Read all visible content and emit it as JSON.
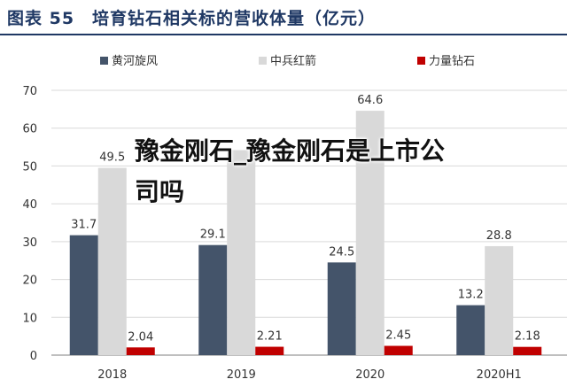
{
  "figure_title": "图表 55　培育钻石相关标的营收体量（亿元）",
  "overlay_text": "豫金刚石_豫金刚石是上市公司吗",
  "colors": {
    "title": "#1f3864",
    "series": [
      "#44546a",
      "#d9d9d9",
      "#c00000"
    ]
  },
  "chart_data": {
    "type": "bar",
    "categories": [
      "2018",
      "2019",
      "2020",
      "2020H1"
    ],
    "series": [
      {
        "name": "黄河旋风",
        "values": [
          31.7,
          29.1,
          24.5,
          13.2
        ],
        "labels": [
          "31.7",
          "29.1",
          "24.5",
          "13.2"
        ]
      },
      {
        "name": "中兵红箭",
        "values": [
          49.5,
          54.2,
          64.6,
          28.8
        ],
        "labels": [
          "49.5",
          "",
          "64.6",
          "28.8"
        ]
      },
      {
        "name": "力量钻石",
        "values": [
          2.04,
          2.21,
          2.45,
          2.18
        ],
        "labels": [
          "2.04",
          "2.21",
          "2.45",
          "2.18"
        ]
      }
    ],
    "ylim": [
      0,
      70
    ],
    "yticks": [
      "0",
      "10",
      "20",
      "30",
      "40",
      "50",
      "60",
      "70"
    ],
    "grid": true,
    "legend": "top"
  }
}
